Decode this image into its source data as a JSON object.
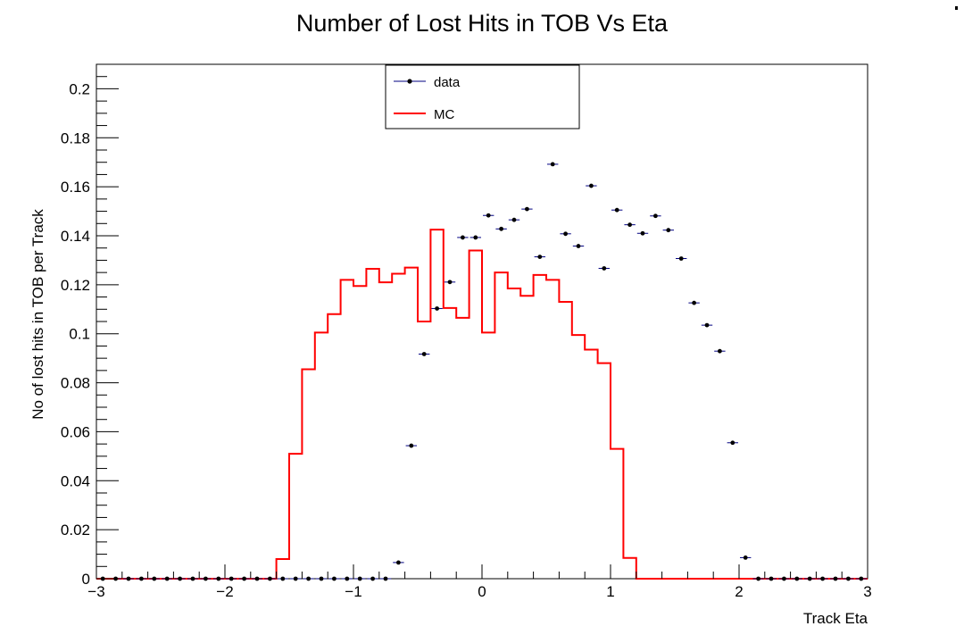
{
  "chart_data": {
    "type": "histogram",
    "title": "Number of Lost Hits in TOB Vs Eta",
    "xlabel": "Track Eta",
    "ylabel": "No of lost hits in TOB per Track",
    "xlim": [
      -3,
      3
    ],
    "ylim": [
      0,
      0.21
    ],
    "x_ticks": [
      -3,
      -2,
      -1,
      0,
      1,
      2,
      3
    ],
    "x_tick_labels": [
      "−3",
      "−2",
      "−1",
      "0",
      "1",
      "2",
      "3"
    ],
    "y_ticks": [
      0,
      0.02,
      0.04,
      0.06,
      0.08,
      0.1,
      0.12,
      0.14,
      0.16,
      0.18,
      0.2
    ],
    "y_tick_labels": [
      "0",
      "0.02",
      "0.04",
      "0.06",
      "0.08",
      "0.1",
      "0.12",
      "0.14",
      "0.16",
      "0.18",
      "0.2"
    ],
    "grid": false,
    "legend_position": "top-center",
    "bin_edges_start": -3,
    "bin_width": 0.1,
    "series": [
      {
        "name": "data",
        "style": "markers",
        "color": "#000000",
        "error_bar_color": "#000080",
        "values": [
          0,
          0,
          0,
          0,
          0,
          0,
          0,
          0,
          0,
          0,
          0,
          0,
          0,
          0,
          0,
          0,
          0,
          0,
          0,
          0,
          0,
          0,
          0,
          0.0066,
          0.0543,
          0.0917,
          0.1103,
          0.1211,
          0.1393,
          0.1393,
          0.1483,
          0.1428,
          0.1465,
          0.1509,
          0.1314,
          0.1692,
          0.1408,
          0.1358,
          0.1604,
          0.1267,
          0.1505,
          0.1445,
          0.141,
          0.1481,
          0.1423,
          0.1307,
          0.1126,
          0.1035,
          0.0929,
          0.0555,
          0.0086,
          0,
          0,
          0,
          0,
          0,
          0,
          0,
          0,
          0
        ]
      },
      {
        "name": "MC",
        "style": "step",
        "color": "#ff0000",
        "values": [
          0,
          0,
          0,
          0,
          0,
          0,
          0,
          0,
          0,
          0,
          0,
          0,
          0,
          0,
          0.008,
          0.051,
          0.0855,
          0.1005,
          0.108,
          0.122,
          0.1195,
          0.1265,
          0.121,
          0.1245,
          0.127,
          0.105,
          0.1425,
          0.1105,
          0.1065,
          0.134,
          0.1005,
          0.125,
          0.1185,
          0.1155,
          0.124,
          0.122,
          0.113,
          0.0995,
          0.0935,
          0.088,
          0.053,
          0.0085,
          0,
          0,
          0,
          0,
          0,
          0,
          0,
          0,
          0,
          0,
          0,
          0,
          0,
          0,
          0,
          0,
          0,
          0
        ]
      }
    ]
  }
}
